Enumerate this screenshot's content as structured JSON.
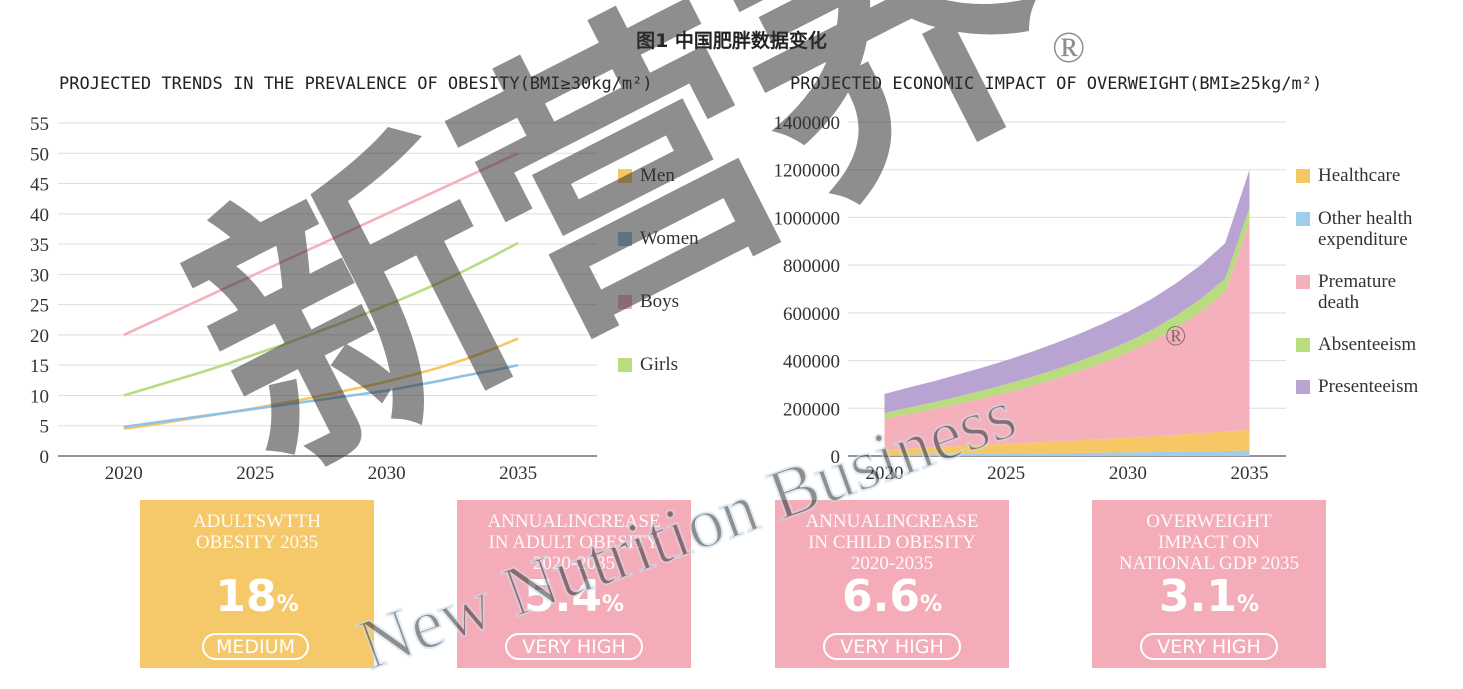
{
  "figure_title": "图1 中国肥胖数据变化",
  "colors": {
    "men": "#f6c765",
    "women": "#8fc2e6",
    "boys": "#f5b1bb",
    "girls": "#b8dc7e",
    "healthcare": "#f6c765",
    "other_health": "#9fcdec",
    "premature_death": "#f5b1bb",
    "absenteeism": "#b8dc7e",
    "presenteeism": "#b9a3d2",
    "card_medium": "#f5c86a",
    "card_high": "#f4adb8",
    "grid": "#dddddd"
  },
  "chart_data": [
    {
      "type": "line",
      "title": "PROJECTED TRENDS IN THE PREVALENCE OF OBESITY(BMI≥30kg/m²)",
      "x": [
        2020,
        2021,
        2022,
        2023,
        2024,
        2025,
        2026,
        2027,
        2028,
        2029,
        2030,
        2031,
        2032,
        2033,
        2034,
        2035
      ],
      "x_ticks": [
        "2020",
        "2025",
        "2030",
        "2035"
      ],
      "y_ticks": [
        "0",
        "5",
        "10",
        "15",
        "20",
        "25",
        "30",
        "35",
        "40",
        "45",
        "50",
        "55"
      ],
      "ylim": [
        0,
        55
      ],
      "xlim": [
        2017.5,
        2038
      ],
      "grid": true,
      "legend": "right",
      "series": [
        {
          "name": "Men",
          "color_key": "men",
          "values": [
            4.5,
            5.1,
            5.8,
            6.5,
            7.2,
            7.9,
            8.7,
            9.5,
            10.4,
            11.3,
            12.3,
            13.4,
            14.6,
            16.0,
            17.6,
            19.4
          ]
        },
        {
          "name": "Women",
          "color_key": "women",
          "values": [
            4.8,
            5.4,
            6.0,
            6.6,
            7.2,
            7.8,
            8.4,
            9.0,
            9.6,
            10.2,
            10.8,
            11.6,
            12.4,
            13.3,
            14.1,
            15.0
          ]
        },
        {
          "name": "Boys",
          "color_key": "boys",
          "values": [
            20.0,
            22.0,
            24.0,
            26.0,
            28.0,
            30.0,
            32.0,
            34.0,
            36.0,
            38.0,
            40.0,
            42.0,
            44.0,
            46.0,
            48.0,
            50.0
          ]
        },
        {
          "name": "Girls",
          "color_key": "girls",
          "values": [
            10.0,
            11.3,
            12.6,
            13.9,
            15.3,
            16.8,
            18.3,
            19.9,
            21.5,
            23.2,
            24.9,
            26.7,
            28.6,
            30.7,
            32.9,
            35.2
          ]
        }
      ]
    },
    {
      "type": "area",
      "stacked": true,
      "title": "PROJECTED ECONOMIC IMPACT OF OVERWEIGHT(BMI≥25kg/m²)",
      "x": [
        2020,
        2021,
        2022,
        2023,
        2024,
        2025,
        2026,
        2027,
        2028,
        2029,
        2030,
        2031,
        2032,
        2033,
        2034,
        2035
      ],
      "x_ticks": [
        "2020",
        "2025",
        "2030",
        "2035"
      ],
      "y_ticks": [
        "0",
        "200000",
        "400000",
        "600000",
        "800000",
        "1000000",
        "1200000",
        "1400000"
      ],
      "ylim": [
        0,
        1400000
      ],
      "xlim": [
        2018.5,
        2036.5
      ],
      "grid": true,
      "legend": "right",
      "series": [
        {
          "name": "Other health expenditure",
          "color_key": "other_health",
          "values": [
            5000,
            6000,
            7000,
            8000,
            9000,
            10000,
            11000,
            12000,
            13000,
            14000,
            15000,
            16500,
            18000,
            19500,
            21000,
            23000
          ]
        },
        {
          "name": "Healthcare",
          "color_key": "healthcare",
          "values": [
            20000,
            25000,
            29000,
            33000,
            37000,
            41000,
            45000,
            49000,
            53000,
            57000,
            61000,
            66000,
            71000,
            76000,
            81000,
            87000
          ]
        },
        {
          "name": "Premature death",
          "color_key": "premature_death",
          "values": [
            130000,
            145000,
            160000,
            177000,
            195000,
            215000,
            237000,
            262000,
            290000,
            322000,
            358000,
            400000,
            450000,
            510000,
            585000,
            870000
          ]
        },
        {
          "name": "Absenteeism",
          "color_key": "absenteeism",
          "values": [
            25000,
            27000,
            29000,
            31000,
            33000,
            35000,
            37000,
            39000,
            41000,
            43000,
            45000,
            47000,
            50000,
            53000,
            56000,
            60000
          ]
        },
        {
          "name": "Presenteeism",
          "color_key": "presenteeism",
          "values": [
            80000,
            84000,
            88000,
            92000,
            96000,
            100000,
            105000,
            110000,
            115000,
            120000,
            125000,
            130000,
            136000,
            142000,
            149000,
            160000
          ]
        }
      ]
    }
  ],
  "legend_left": [
    {
      "label": "Men",
      "color_key": "men"
    },
    {
      "label": "Women",
      "color_key": "women"
    },
    {
      "label": "Boys",
      "color_key": "boys"
    },
    {
      "label": "Girls",
      "color_key": "girls"
    }
  ],
  "legend_right": [
    {
      "label": "Healthcare",
      "color_key": "healthcare"
    },
    {
      "label": "Other health\nexpenditure",
      "color_key": "other_health"
    },
    {
      "label": "Premature\ndeath",
      "color_key": "premature_death"
    },
    {
      "label": "Absenteeism",
      "color_key": "absenteeism"
    },
    {
      "label": "Presenteeism",
      "color_key": "presenteeism"
    }
  ],
  "stat_cards": [
    {
      "label": "ADULTSWTTH\nOBESITY 2035",
      "value": "18",
      "unit": "%",
      "level": "MEDIUM",
      "color_key": "card_medium"
    },
    {
      "label": "ANNUALINCREASE\nIN ADULT OBESITY\n2020-2035",
      "value": "5.4",
      "unit": "%",
      "level": "VERY HIGH",
      "color_key": "card_high"
    },
    {
      "label": "ANNUALINCREASE\nIN CHILD OBESITY\n2020-2035",
      "value": "6.6",
      "unit": "%",
      "level": "VERY HIGH",
      "color_key": "card_high"
    },
    {
      "label": "OVERWEIGHT\nIMPACT ON\nNATIONAL GDP 2035",
      "value": "3.1",
      "unit": "%",
      "level": "VERY HIGH",
      "color_key": "card_high"
    }
  ],
  "watermark": {
    "main_text": "新营养",
    "sub_text": "New Nutrition Business",
    "registered": "®",
    "color": "#c9dcec"
  }
}
